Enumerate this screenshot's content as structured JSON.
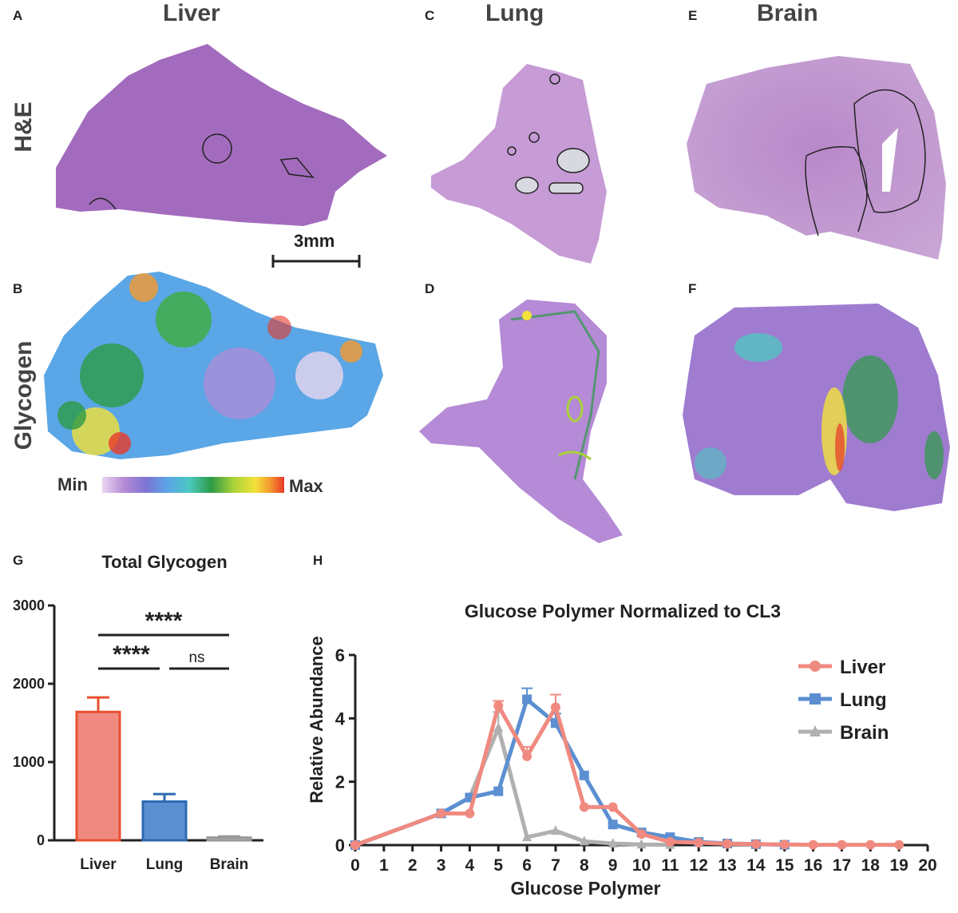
{
  "panels": {
    "A": "A",
    "B": "B",
    "C": "C",
    "D": "D",
    "E": "E",
    "F": "F",
    "G": "G",
    "H": "H"
  },
  "columns": {
    "liver": "Liver",
    "lung": "Lung",
    "brain": "Brain"
  },
  "rows": {
    "he": "H&E",
    "glycogen": "Glycogen"
  },
  "scalebar": {
    "label": "3mm"
  },
  "colorbar": {
    "min": "Min",
    "max": "Max",
    "colors": [
      "#e9d6ef",
      "#b58ad6",
      "#7e74d2",
      "#5aa6e6",
      "#4cc8c0",
      "#2c9b46",
      "#3fae3c",
      "#a9d23a",
      "#f2e23a",
      "#f59a2e",
      "#e8392a"
    ]
  },
  "tissue_colors": {
    "he": "#a36bbd",
    "he_light": "#c79bd6",
    "outline": "#222222"
  },
  "chart_data": [
    {
      "type": "bar",
      "title": "Total Glycogen",
      "categories": [
        "Liver",
        "Lung",
        "Brain"
      ],
      "values": [
        1640,
        495,
        35
      ],
      "errors": [
        185,
        95,
        15
      ],
      "colors": {
        "fill": [
          "#f08a80",
          "#5b8fd1",
          "#bdbdbd"
        ],
        "stroke": [
          "#e8512f",
          "#2e6ab2",
          "#9a9a9a"
        ]
      },
      "ylim": [
        0,
        3000
      ],
      "yticks": [
        0,
        1000,
        2000,
        3000
      ],
      "significance": [
        {
          "from": "Liver",
          "to": "Brain",
          "label": "****",
          "level": 3000
        },
        {
          "from": "Liver",
          "to": "Lung",
          "label": "****",
          "level": 2200
        },
        {
          "from": "Lung",
          "to": "Brain",
          "label": "ns",
          "level": 2200
        }
      ]
    },
    {
      "type": "line",
      "title": "Glucose Polymer Normalized to CL3",
      "xlabel": "Glucose Polymer",
      "ylabel": "Relative Abundance",
      "xlim": [
        0,
        20
      ],
      "ylim": [
        0,
        6
      ],
      "xticks": [
        0,
        1,
        2,
        3,
        4,
        5,
        6,
        7,
        8,
        9,
        10,
        11,
        12,
        13,
        14,
        15,
        16,
        17,
        18,
        19,
        20
      ],
      "yticks": [
        0,
        2,
        4,
        6
      ],
      "legend_position": "top-right",
      "series": [
        {
          "name": "Liver",
          "color": "#f08a80",
          "marker": "circle",
          "x": [
            0,
            3,
            4,
            5,
            6,
            7,
            8,
            9,
            10,
            11,
            12,
            13,
            14,
            15,
            16,
            17,
            18,
            19
          ],
          "y": [
            0,
            1.0,
            1.0,
            4.4,
            2.8,
            4.35,
            1.2,
            1.2,
            0.35,
            0.1,
            0.08,
            0.04,
            0.03,
            0.02,
            0.01,
            0.01,
            0.01,
            0.01
          ],
          "err": [
            0,
            0,
            0,
            0.15,
            0.3,
            0.4,
            0,
            0,
            0,
            0,
            0,
            0,
            0,
            0,
            0,
            0,
            0,
            0
          ]
        },
        {
          "name": "Lung",
          "color": "#5b8fd1",
          "marker": "square",
          "x": [
            0,
            3,
            4,
            5,
            6,
            7,
            8,
            9,
            10,
            11,
            12,
            13,
            14,
            15
          ],
          "y": [
            0,
            1.0,
            1.5,
            1.7,
            4.6,
            3.85,
            2.2,
            0.65,
            0.4,
            0.25,
            0.1,
            0.05,
            0.03,
            0.01
          ],
          "err": [
            0,
            0,
            0,
            0,
            0.35,
            0.3,
            0,
            0,
            0,
            0,
            0,
            0,
            0,
            0
          ]
        },
        {
          "name": "Brain",
          "color": "#b0b0b0",
          "marker": "triangle",
          "x": [
            0,
            3,
            4,
            5,
            6,
            7,
            8,
            9,
            10,
            11
          ],
          "y": [
            0,
            1.0,
            1.5,
            3.7,
            0.25,
            0.45,
            0.12,
            0.05,
            0.02,
            0.01
          ],
          "err": [
            0,
            0,
            0,
            0.5,
            0,
            0,
            0,
            0,
            0,
            0
          ]
        }
      ]
    }
  ]
}
